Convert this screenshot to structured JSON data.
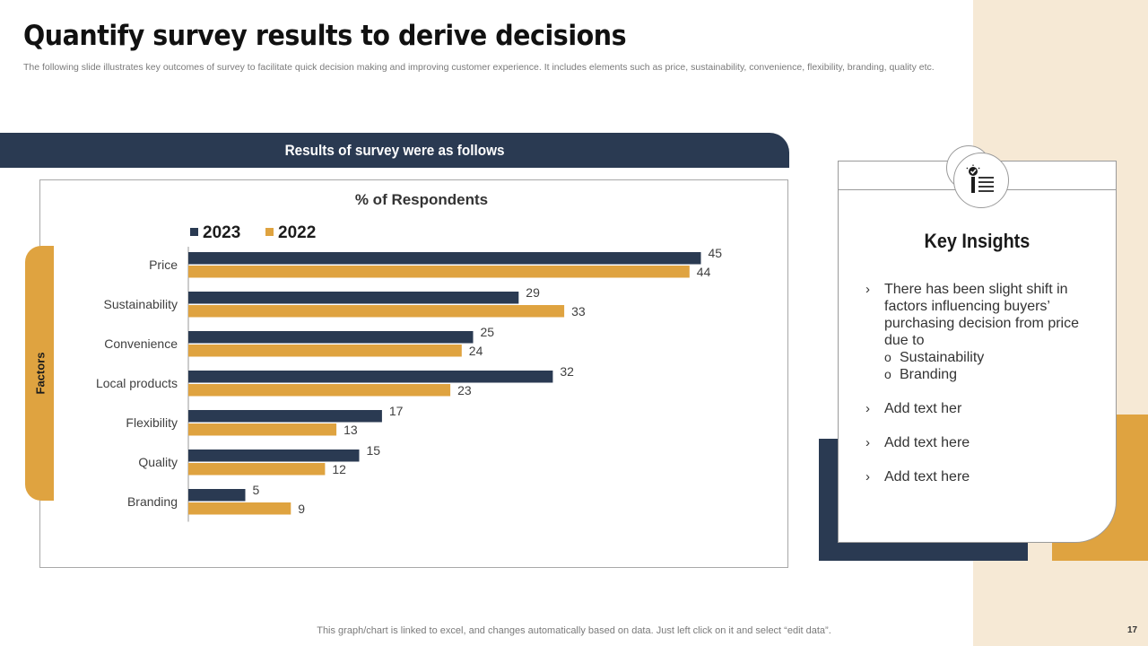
{
  "page": {
    "title": "Quantify survey results to derive decisions",
    "subtitle": "The following slide illustrates key outcomes of survey to facilitate quick decision making and improving customer experience. It includes elements such as price, sustainability, convenience, flexibility,  branding, quality etc.",
    "banner": "Results of survey were as follows",
    "axis_label": "Factors",
    "footer_note": "This graph/chart is linked to excel,  and changes automatically based on data. Just left click on it and select “edit data”.",
    "page_number": "17"
  },
  "colors": {
    "navy": "#2a3a52",
    "gold": "#dfa340",
    "cream": "#f6e9d5"
  },
  "chart_data": {
    "type": "bar",
    "orientation": "horizontal",
    "title": "% of Respondents",
    "categories": [
      "Price",
      "Sustainability",
      "Convenience",
      "Local products",
      "Flexibility",
      "Quality",
      "Branding"
    ],
    "series": [
      {
        "name": "2023",
        "color": "#2a3a52",
        "values": [
          45,
          29,
          25,
          32,
          17,
          15,
          5
        ]
      },
      {
        "name": "2022",
        "color": "#dfa340",
        "values": [
          44,
          33,
          24,
          23,
          13,
          12,
          9
        ]
      }
    ],
    "xlim": [
      0,
      50
    ],
    "legend_position": "top-left",
    "grid": false,
    "data_labels": true
  },
  "insights": {
    "title": "Key Insights",
    "icon": "checklist-icon",
    "items": [
      {
        "text": "There has been slight shift in factors influencing buyers’ purchasing decision from price due to",
        "subs": [
          "Sustainability",
          "Branding"
        ]
      },
      {
        "text": "Add text her",
        "subs": []
      },
      {
        "text": "Add text here",
        "subs": []
      },
      {
        "text": "Add text here",
        "subs": []
      }
    ]
  }
}
